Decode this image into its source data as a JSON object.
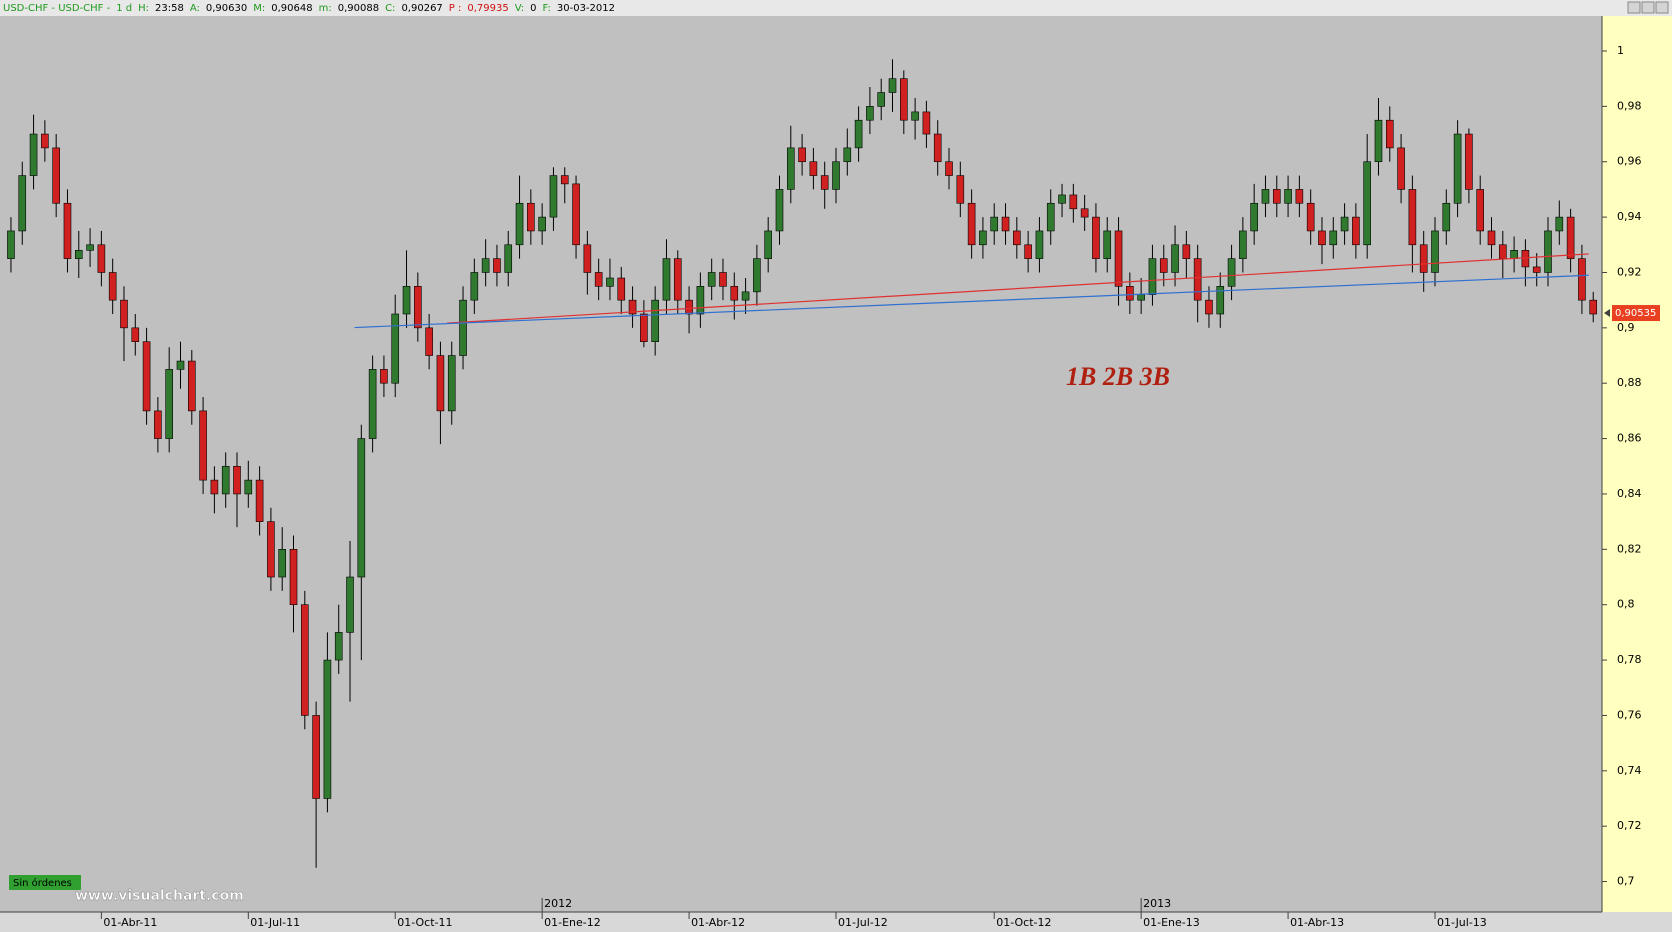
{
  "chart_data": {
    "type": "candlestick",
    "header": [
      {
        "text": "USD-CHF  -  USD-CHF  -",
        "color": "#1f9a1f"
      },
      {
        "text": "1 d",
        "color": "#1f9a1f"
      },
      {
        "text": "H:",
        "color": "#1f9a1f"
      },
      {
        "text": "23:58",
        "color": "#000000"
      },
      {
        "text": "A:",
        "color": "#1f9a1f"
      },
      {
        "text": "0,90630",
        "color": "#000000"
      },
      {
        "text": "M:",
        "color": "#1f9a1f"
      },
      {
        "text": "0,90648",
        "color": "#000000"
      },
      {
        "text": "m:",
        "color": "#1f9a1f"
      },
      {
        "text": "0,90088",
        "color": "#000000"
      },
      {
        "text": "C:",
        "color": "#1f9a1f"
      },
      {
        "text": "0,90267",
        "color": "#000000"
      },
      {
        "text": "P :",
        "color": "#d01010"
      },
      {
        "text": "0,79935",
        "color": "#d01010"
      },
      {
        "text": "V:",
        "color": "#1f9a1f"
      },
      {
        "text": "0",
        "color": "#000000"
      },
      {
        "text": "F:",
        "color": "#1f9a1f"
      },
      {
        "text": "30-03-2012",
        "color": "#000000"
      }
    ],
    "up_color": "#2f7a2f",
    "down_color": "#d02020",
    "open": [
      0.925,
      0.935,
      0.955,
      0.97,
      0.965,
      0.945,
      0.925,
      0.928,
      0.93,
      0.92,
      0.91,
      0.9,
      0.895,
      0.87,
      0.86,
      0.885,
      0.888,
      0.87,
      0.845,
      0.84,
      0.85,
      0.84,
      0.845,
      0.83,
      0.81,
      0.82,
      0.8,
      0.76,
      0.73,
      0.78,
      0.79,
      0.81,
      0.86,
      0.885,
      0.88,
      0.905,
      0.915,
      0.9,
      0.89,
      0.87,
      0.89,
      0.91,
      0.92,
      0.925,
      0.92,
      0.93,
      0.945,
      0.935,
      0.94,
      0.955,
      0.952,
      0.93,
      0.92,
      0.915,
      0.918,
      0.91,
      0.905,
      0.895,
      0.91,
      0.925,
      0.91,
      0.905,
      0.915,
      0.92,
      0.915,
      0.91,
      0.913,
      0.925,
      0.935,
      0.95,
      0.965,
      0.96,
      0.955,
      0.95,
      0.96,
      0.965,
      0.975,
      0.98,
      0.985,
      0.99,
      0.975,
      0.978,
      0.97,
      0.96,
      0.955,
      0.945,
      0.93,
      0.935,
      0.94,
      0.935,
      0.93,
      0.925,
      0.935,
      0.945,
      0.948,
      0.943,
      0.94,
      0.925,
      0.935,
      0.915,
      0.91,
      0.912,
      0.925,
      0.92,
      0.93,
      0.925,
      0.91,
      0.905,
      0.915,
      0.925,
      0.935,
      0.945,
      0.95,
      0.945,
      0.95,
      0.945,
      0.935,
      0.93,
      0.935,
      0.94,
      0.93,
      0.96,
      0.975,
      0.965,
      0.95,
      0.93,
      0.92,
      0.935,
      0.945,
      0.97,
      0.95,
      0.935,
      0.93,
      0.925,
      0.928,
      0.922,
      0.92,
      0.935,
      0.94,
      0.925,
      0.91
    ],
    "high": [
      0.94,
      0.96,
      0.977,
      0.975,
      0.97,
      0.95,
      0.935,
      0.936,
      0.935,
      0.925,
      0.915,
      0.905,
      0.9,
      0.875,
      0.893,
      0.895,
      0.892,
      0.875,
      0.85,
      0.855,
      0.855,
      0.852,
      0.85,
      0.835,
      0.828,
      0.825,
      0.805,
      0.765,
      0.79,
      0.8,
      0.823,
      0.865,
      0.89,
      0.89,
      0.912,
      0.928,
      0.92,
      0.905,
      0.895,
      0.895,
      0.915,
      0.925,
      0.932,
      0.93,
      0.935,
      0.955,
      0.95,
      0.945,
      0.958,
      0.958,
      0.955,
      0.935,
      0.925,
      0.925,
      0.922,
      0.915,
      0.91,
      0.915,
      0.932,
      0.928,
      0.915,
      0.92,
      0.925,
      0.925,
      0.92,
      0.918,
      0.93,
      0.94,
      0.955,
      0.973,
      0.97,
      0.965,
      0.96,
      0.965,
      0.972,
      0.98,
      0.987,
      0.99,
      0.997,
      0.993,
      0.983,
      0.982,
      0.975,
      0.965,
      0.96,
      0.95,
      0.94,
      0.945,
      0.945,
      0.94,
      0.935,
      0.94,
      0.95,
      0.952,
      0.952,
      0.948,
      0.945,
      0.94,
      0.94,
      0.92,
      0.918,
      0.93,
      0.93,
      0.937,
      0.935,
      0.93,
      0.915,
      0.92,
      0.93,
      0.94,
      0.952,
      0.955,
      0.955,
      0.955,
      0.955,
      0.95,
      0.94,
      0.94,
      0.945,
      0.945,
      0.97,
      0.983,
      0.98,
      0.97,
      0.955,
      0.935,
      0.94,
      0.95,
      0.975,
      0.972,
      0.955,
      0.94,
      0.935,
      0.933,
      0.932,
      0.927,
      0.94,
      0.946,
      0.943,
      0.93,
      0.913
    ],
    "low": [
      0.92,
      0.93,
      0.95,
      0.96,
      0.94,
      0.92,
      0.918,
      0.922,
      0.915,
      0.905,
      0.888,
      0.89,
      0.865,
      0.855,
      0.855,
      0.878,
      0.865,
      0.84,
      0.833,
      0.835,
      0.828,
      0.835,
      0.825,
      0.805,
      0.805,
      0.79,
      0.755,
      0.705,
      0.725,
      0.775,
      0.765,
      0.78,
      0.855,
      0.875,
      0.875,
      0.9,
      0.895,
      0.885,
      0.858,
      0.865,
      0.885,
      0.905,
      0.915,
      0.915,
      0.915,
      0.925,
      0.93,
      0.93,
      0.935,
      0.945,
      0.925,
      0.912,
      0.91,
      0.91,
      0.905,
      0.9,
      0.893,
      0.89,
      0.905,
      0.905,
      0.898,
      0.9,
      0.91,
      0.91,
      0.903,
      0.905,
      0.908,
      0.92,
      0.93,
      0.945,
      0.955,
      0.95,
      0.943,
      0.945,
      0.955,
      0.96,
      0.97,
      0.975,
      0.978,
      0.97,
      0.968,
      0.965,
      0.955,
      0.95,
      0.94,
      0.925,
      0.925,
      0.93,
      0.93,
      0.925,
      0.92,
      0.92,
      0.93,
      0.94,
      0.938,
      0.935,
      0.92,
      0.92,
      0.908,
      0.905,
      0.905,
      0.908,
      0.915,
      0.915,
      0.918,
      0.902,
      0.9,
      0.9,
      0.91,
      0.92,
      0.93,
      0.94,
      0.94,
      0.94,
      0.94,
      0.93,
      0.923,
      0.925,
      0.93,
      0.925,
      0.925,
      0.955,
      0.96,
      0.945,
      0.92,
      0.913,
      0.915,
      0.93,
      0.94,
      0.945,
      0.93,
      0.925,
      0.918,
      0.92,
      0.915,
      0.915,
      0.915,
      0.93,
      0.92,
      0.905,
      0.902
    ],
    "close": [
      0.935,
      0.955,
      0.97,
      0.965,
      0.945,
      0.925,
      0.928,
      0.93,
      0.92,
      0.91,
      0.9,
      0.895,
      0.87,
      0.86,
      0.885,
      0.888,
      0.87,
      0.845,
      0.84,
      0.85,
      0.84,
      0.845,
      0.83,
      0.81,
      0.82,
      0.8,
      0.76,
      0.73,
      0.78,
      0.79,
      0.81,
      0.86,
      0.885,
      0.88,
      0.905,
      0.915,
      0.9,
      0.89,
      0.87,
      0.89,
      0.91,
      0.92,
      0.925,
      0.92,
      0.93,
      0.945,
      0.935,
      0.94,
      0.955,
      0.952,
      0.93,
      0.92,
      0.915,
      0.918,
      0.91,
      0.905,
      0.895,
      0.91,
      0.925,
      0.91,
      0.905,
      0.915,
      0.92,
      0.915,
      0.91,
      0.913,
      0.925,
      0.935,
      0.95,
      0.965,
      0.96,
      0.955,
      0.95,
      0.96,
      0.965,
      0.975,
      0.98,
      0.985,
      0.99,
      0.975,
      0.978,
      0.97,
      0.96,
      0.955,
      0.945,
      0.93,
      0.935,
      0.94,
      0.935,
      0.93,
      0.925,
      0.935,
      0.945,
      0.948,
      0.943,
      0.94,
      0.925,
      0.935,
      0.915,
      0.91,
      0.912,
      0.925,
      0.92,
      0.93,
      0.925,
      0.91,
      0.905,
      0.915,
      0.925,
      0.935,
      0.945,
      0.95,
      0.945,
      0.95,
      0.945,
      0.935,
      0.93,
      0.935,
      0.94,
      0.93,
      0.96,
      0.975,
      0.965,
      0.95,
      0.93,
      0.92,
      0.935,
      0.945,
      0.97,
      0.95,
      0.935,
      0.93,
      0.925,
      0.928,
      0.922,
      0.92,
      0.935,
      0.94,
      0.925,
      0.91,
      0.905
    ],
    "xlim": [
      -0.97,
      140.6
    ],
    "xticks": [
      {
        "value": 8,
        "label": "01-Abr-11"
      },
      {
        "value": 21,
        "label": "01-Jul-11"
      },
      {
        "value": 34,
        "label": "01-Oct-11"
      },
      {
        "value": 47,
        "label": "01-Ene-12"
      },
      {
        "value": 60,
        "label": "01-Abr-12"
      },
      {
        "value": 73,
        "label": "01-Jul-12"
      },
      {
        "value": 87,
        "label": "01-Oct-12"
      },
      {
        "value": 100,
        "label": "01-Ene-13"
      },
      {
        "value": 113,
        "label": "01-Abr-13"
      },
      {
        "value": 126,
        "label": "01-Jul-13"
      }
    ],
    "year_ticks": [
      {
        "value": 47,
        "label": "2012"
      },
      {
        "value": 100,
        "label": "2013"
      }
    ],
    "ylim": [
      0.689,
      1.013
    ],
    "yticks": [
      {
        "value": 0.7,
        "label": "0,7"
      },
      {
        "value": 0.72,
        "label": "0,72"
      },
      {
        "value": 0.74,
        "label": "0,74"
      },
      {
        "value": 0.76,
        "label": "0,76"
      },
      {
        "value": 0.78,
        "label": "0,78"
      },
      {
        "value": 0.8,
        "label": "0,8"
      },
      {
        "value": 0.82,
        "label": "0,82"
      },
      {
        "value": 0.84,
        "label": "0,84"
      },
      {
        "value": 0.86,
        "label": "0,86"
      },
      {
        "value": 0.88,
        "label": "0,88"
      },
      {
        "value": 0.9,
        "label": "0,9"
      },
      {
        "value": 0.92,
        "label": "0,92"
      },
      {
        "value": 0.94,
        "label": "0,94"
      },
      {
        "value": 0.96,
        "label": "0,96"
      },
      {
        "value": 0.98,
        "label": "0,98"
      },
      1
    ],
    "trendlines": [
      {
        "color": "#e03030",
        "x": [
          38.6,
          139.6
        ],
        "y": [
          0.9017,
          0.9267
        ]
      },
      {
        "color": "#3070d0",
        "x": [
          30.4,
          139.6
        ],
        "y": [
          0.9001,
          0.919
        ]
      }
    ],
    "last_price": {
      "value": 0.90535,
      "label": "0,90535"
    },
    "annotation": "1B 2B 3B",
    "status": "Sin órdenes",
    "watermark": "www.visualchart.com"
  }
}
